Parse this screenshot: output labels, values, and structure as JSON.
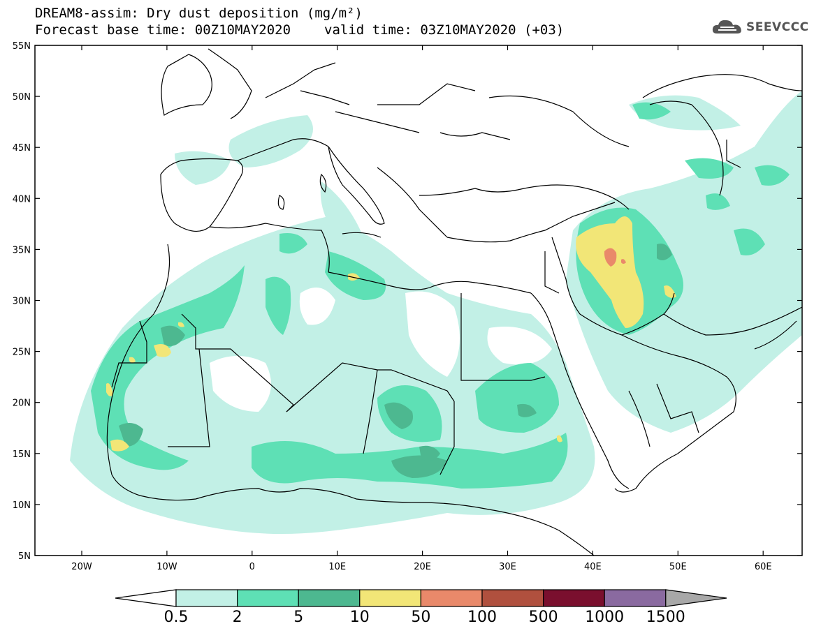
{
  "header": {
    "title_line1": "DREAM8-assim: Dry dust deposition (mg/m²)",
    "base_time": "Forecast base time: 00Z10MAY2020",
    "valid_time": "valid time: 03Z10MAY2020 (+03)"
  },
  "logo": {
    "text": "SEEVCCC",
    "icon": "cloud-logo-icon"
  },
  "map": {
    "lat_labels": [
      "55N",
      "50N",
      "45N",
      "40N",
      "35N",
      "30N",
      "25N",
      "20N",
      "15N",
      "10N",
      "5N"
    ],
    "lon_labels": [
      "20W",
      "10W",
      "0",
      "10E",
      "20E",
      "30E",
      "40E",
      "50E",
      "60E"
    ]
  },
  "colorbar": {
    "labels": [
      "0.5",
      "2",
      "5",
      "10",
      "50",
      "100",
      "500",
      "1000",
      "1500"
    ],
    "colors": [
      "#c2f0e6",
      "#5ee0b5",
      "#4db890",
      "#f2e677",
      "#e9896a",
      "#b0503e",
      "#7a0f2e",
      "#8a6aa0"
    ],
    "under_color": "#ffffff",
    "over_color": "#a8a8a8"
  }
}
